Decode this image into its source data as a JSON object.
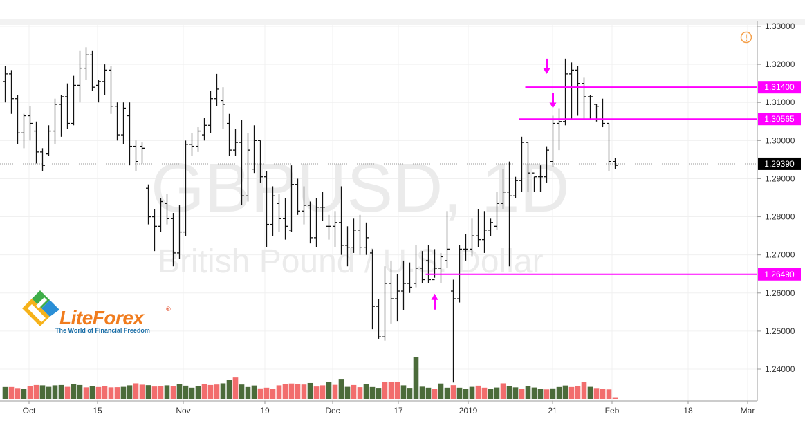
{
  "watermark": {
    "symbol": "GBPUSD, 1D",
    "description": "British Pound / U.S. Dollar"
  },
  "logo": {
    "name": "LiteForex",
    "registered": "®",
    "tagline": "The World of Financial Freedom"
  },
  "colors": {
    "up_volume": "#4b6b3a",
    "down_volume": "#f26d6d",
    "bars": "#111111",
    "marker": "#ff00ff",
    "last_price_bg": "#000000",
    "alert_icon": "#f5a04a"
  },
  "alert_icon": "alert-circle-icon",
  "chart_data": {
    "type": "ohlc",
    "title": "",
    "ylim": [
      1.232,
      1.332
    ],
    "y_ticks": [
      "1.24000",
      "1.25000",
      "1.26000",
      "1.27000",
      "1.28000",
      "1.29000",
      "1.30000",
      "1.31000",
      "1.32000",
      "1.33000"
    ],
    "x_ticks": [
      "Oct",
      "15",
      "Nov",
      "19",
      "Dec",
      "17",
      "2019",
      "21",
      "Feb",
      "18",
      "Mar"
    ],
    "last_price": "1.29390",
    "price_levels": [
      {
        "label": "1.31400",
        "value": 1.314,
        "from_bar": 84
      },
      {
        "label": "1.30565",
        "value": 1.30565,
        "from_bar": 83
      },
      {
        "label": "1.26490",
        "value": 1.2649,
        "from_bar": 68
      }
    ],
    "arrows": [
      {
        "bar": 87,
        "direction": "down",
        "value": 1.3175
      },
      {
        "bar": 88,
        "direction": "down",
        "value": 1.3085
      },
      {
        "bar": 69,
        "direction": "up",
        "value": 1.26
      }
    ],
    "bars": [
      [
        1.3155,
        1.3195,
        1.31,
        1.3175
      ],
      [
        1.3175,
        1.3185,
        1.307,
        1.311
      ],
      [
        1.311,
        1.312,
        1.299,
        1.302
      ],
      [
        1.302,
        1.307,
        1.298,
        1.3065
      ],
      [
        1.3065,
        1.309,
        1.3,
        1.3045
      ],
      [
        1.3025,
        1.305,
        1.294,
        1.297
      ],
      [
        1.297,
        1.298,
        1.292,
        1.2935
      ],
      [
        1.2965,
        1.304,
        1.296,
        1.3025
      ],
      [
        1.3025,
        1.311,
        1.299,
        1.3095
      ],
      [
        1.3095,
        1.312,
        1.301,
        1.3115
      ],
      [
        1.3115,
        1.315,
        1.303,
        1.3045
      ],
      [
        1.3045,
        1.317,
        1.304,
        1.3145
      ],
      [
        1.3145,
        1.3235,
        1.31,
        1.319
      ],
      [
        1.319,
        1.3245,
        1.316,
        1.3225
      ],
      [
        1.3225,
        1.3235,
        1.313,
        1.314
      ],
      [
        1.3145,
        1.316,
        1.31,
        1.3155
      ],
      [
        1.3155,
        1.32,
        1.312,
        1.3185
      ],
      [
        1.3185,
        1.3195,
        1.307,
        1.309
      ],
      [
        1.309,
        1.31,
        1.3,
        1.3015
      ],
      [
        1.3015,
        1.31,
        1.299,
        1.3085
      ],
      [
        1.3065,
        1.31,
        1.2935,
        1.2985
      ],
      [
        1.2985,
        1.3,
        1.292,
        1.2945
      ],
      [
        1.2985,
        1.2995,
        1.294,
        1.298
      ],
      [
        1.2875,
        1.2885,
        1.278,
        1.28
      ],
      [
        1.28,
        1.282,
        1.271,
        1.2775
      ],
      [
        1.2775,
        1.285,
        1.276,
        1.284
      ],
      [
        1.2835,
        1.286,
        1.278,
        1.2795
      ],
      [
        1.2795,
        1.281,
        1.267,
        1.2705
      ],
      [
        1.2705,
        1.283,
        1.269,
        1.276
      ],
      [
        1.276,
        1.3,
        1.275,
        1.299
      ],
      [
        1.299,
        1.302,
        1.296,
        1.2985
      ],
      [
        1.2985,
        1.3035,
        1.297,
        1.3025
      ],
      [
        1.3015,
        1.306,
        1.3,
        1.304
      ],
      [
        1.304,
        1.313,
        1.302,
        1.311
      ],
      [
        1.311,
        1.3175,
        1.309,
        1.3135
      ],
      [
        1.3105,
        1.314,
        1.303,
        1.3095
      ],
      [
        1.3045,
        1.307,
        1.296,
        1.2975
      ],
      [
        1.2975,
        1.303,
        1.296,
        1.2995
      ],
      [
        1.2995,
        1.3055,
        1.283,
        1.2855
      ],
      [
        1.2855,
        1.302,
        1.284,
        1.2975
      ],
      [
        1.2925,
        1.304,
        1.2915,
        1.3
      ],
      [
        1.3,
        1.3,
        1.289,
        1.2905
      ],
      [
        1.2905,
        1.292,
        1.272,
        1.278
      ],
      [
        1.278,
        1.288,
        1.275,
        1.2855
      ],
      [
        1.2835,
        1.286,
        1.276,
        1.2795
      ],
      [
        1.2795,
        1.285,
        1.274,
        1.2775
      ],
      [
        1.2765,
        1.2935,
        1.276,
        1.2885
      ],
      [
        1.2885,
        1.29,
        1.2805,
        1.2815
      ],
      [
        1.2815,
        1.288,
        1.278,
        1.283
      ],
      [
        1.283,
        1.284,
        1.273,
        1.2745
      ],
      [
        1.2745,
        1.285,
        1.272,
        1.2825
      ],
      [
        1.2825,
        1.2865,
        1.279,
        1.2825
      ],
      [
        1.2775,
        1.2805,
        1.274,
        1.2775
      ],
      [
        1.2775,
        1.2815,
        1.272,
        1.2785
      ],
      [
        1.2785,
        1.288,
        1.27,
        1.2725
      ],
      [
        1.2725,
        1.2775,
        1.267,
        1.272
      ],
      [
        1.272,
        1.2795,
        1.2705,
        1.2765
      ],
      [
        1.2765,
        1.2805,
        1.27,
        1.272
      ],
      [
        1.272,
        1.2785,
        1.27,
        1.2745
      ],
      [
        1.2705,
        1.2715,
        1.2505,
        1.2565
      ],
      [
        1.2565,
        1.2585,
        1.248,
        1.2485
      ],
      [
        1.2485,
        1.267,
        1.2475,
        1.2625
      ],
      [
        1.2625,
        1.2685,
        1.252,
        1.2585
      ],
      [
        1.2585,
        1.265,
        1.2525,
        1.2605
      ],
      [
        1.2605,
        1.2685,
        1.2555,
        1.2625
      ],
      [
        1.2625,
        1.268,
        1.26,
        1.2615
      ],
      [
        1.2625,
        1.2725,
        1.2615,
        1.2665
      ],
      [
        1.2665,
        1.271,
        1.2625,
        1.2635
      ],
      [
        1.2685,
        1.2725,
        1.2625,
        1.2635
      ],
      [
        1.2635,
        1.2715,
        1.264,
        1.2665
      ],
      [
        1.2665,
        1.2705,
        1.2625,
        1.2695
      ],
      [
        1.2685,
        1.2815,
        1.2665,
        1.2715
      ],
      [
        1.2605,
        1.2635,
        1.2365,
        1.2585
      ],
      [
        1.2585,
        1.2725,
        1.2575,
        1.2715
      ],
      [
        1.2715,
        1.2755,
        1.2685,
        1.2715
      ],
      [
        1.2715,
        1.2795,
        1.2695,
        1.275
      ],
      [
        1.275,
        1.282,
        1.272,
        1.274
      ],
      [
        1.274,
        1.2815,
        1.2705,
        1.2765
      ],
      [
        1.2765,
        1.2795,
        1.275,
        1.2785
      ],
      [
        1.2775,
        1.2865,
        1.2765,
        1.2835
      ],
      [
        1.2835,
        1.2925,
        1.282,
        1.2865
      ],
      [
        1.2865,
        1.2945,
        1.267,
        1.2855
      ],
      [
        1.2855,
        1.2905,
        1.285,
        1.2895
      ],
      [
        1.2895,
        1.301,
        1.2865,
        1.2995
      ],
      [
        1.2995,
        1.2995,
        1.2865,
        1.2915
      ],
      [
        1.2915,
        1.2905,
        1.2865,
        1.2905
      ],
      [
        1.2905,
        1.2935,
        1.2865,
        1.2905
      ],
      [
        1.2905,
        1.2985,
        1.289,
        1.2975
      ],
      [
        1.2945,
        1.3065,
        1.293,
        1.3045
      ],
      [
        1.3045,
        1.3085,
        1.2975,
        1.305
      ],
      [
        1.305,
        1.3215,
        1.304,
        1.3175
      ],
      [
        1.3175,
        1.3205,
        1.3055,
        1.3185
      ],
      [
        1.3185,
        1.3195,
        1.3065,
        1.315
      ],
      [
        1.315,
        1.3165,
        1.3055,
        1.3115
      ],
      [
        1.3115,
        1.312,
        1.3055,
        1.3115
      ],
      [
        1.3095,
        1.3095,
        1.305,
        1.309
      ],
      [
        1.3055,
        1.311,
        1.3035,
        1.3045
      ],
      [
        1.3045,
        1.3045,
        1.292,
        1.2945
      ],
      [
        1.2945,
        1.2955,
        1.2925,
        1.2935
      ]
    ],
    "volumes": [
      [
        70,
        1
      ],
      [
        70,
        0
      ],
      [
        64,
        0
      ],
      [
        58,
        1
      ],
      [
        75,
        0
      ],
      [
        82,
        0
      ],
      [
        80,
        1
      ],
      [
        71,
        1
      ],
      [
        80,
        1
      ],
      [
        82,
        1
      ],
      [
        71,
        0
      ],
      [
        88,
        1
      ],
      [
        82,
        1
      ],
      [
        68,
        0
      ],
      [
        74,
        1
      ],
      [
        70,
        0
      ],
      [
        75,
        0
      ],
      [
        68,
        0
      ],
      [
        69,
        0
      ],
      [
        71,
        1
      ],
      [
        80,
        1
      ],
      [
        92,
        0
      ],
      [
        84,
        0
      ],
      [
        81,
        1
      ],
      [
        73,
        0
      ],
      [
        75,
        0
      ],
      [
        80,
        1
      ],
      [
        76,
        0
      ],
      [
        89,
        1
      ],
      [
        78,
        1
      ],
      [
        66,
        1
      ],
      [
        76,
        1
      ],
      [
        86,
        0
      ],
      [
        82,
        0
      ],
      [
        85,
        0
      ],
      [
        92,
        1
      ],
      [
        112,
        1
      ],
      [
        126,
        0
      ],
      [
        85,
        1
      ],
      [
        70,
        1
      ],
      [
        79,
        1
      ],
      [
        62,
        0
      ],
      [
        66,
        0
      ],
      [
        61,
        0
      ],
      [
        80,
        0
      ],
      [
        89,
        0
      ],
      [
        91,
        0
      ],
      [
        86,
        0
      ],
      [
        85,
        0
      ],
      [
        94,
        1
      ],
      [
        73,
        0
      ],
      [
        80,
        0
      ],
      [
        98,
        1
      ],
      [
        83,
        0
      ],
      [
        118,
        1
      ],
      [
        71,
        1
      ],
      [
        82,
        0
      ],
      [
        69,
        0
      ],
      [
        89,
        1
      ],
      [
        70,
        1
      ],
      [
        65,
        1
      ],
      [
        100,
        0
      ],
      [
        101,
        0
      ],
      [
        98,
        0
      ],
      [
        80,
        1
      ],
      [
        65,
        1
      ],
      [
        247,
        1
      ],
      [
        72,
        1
      ],
      [
        66,
        1
      ],
      [
        60,
        0
      ],
      [
        91,
        1
      ],
      [
        66,
        1
      ],
      [
        81,
        0
      ],
      [
        66,
        1
      ],
      [
        60,
        1
      ],
      [
        71,
        1
      ],
      [
        78,
        0
      ],
      [
        66,
        0
      ],
      [
        58,
        1
      ],
      [
        67,
        1
      ],
      [
        92,
        0
      ],
      [
        77,
        1
      ],
      [
        68,
        1
      ],
      [
        60,
        0
      ],
      [
        74,
        1
      ],
      [
        67,
        1
      ],
      [
        60,
        1
      ],
      [
        56,
        0
      ],
      [
        62,
        1
      ],
      [
        70,
        1
      ],
      [
        79,
        1
      ],
      [
        70,
        0
      ],
      [
        76,
        0
      ],
      [
        98,
        0
      ],
      [
        71,
        1
      ],
      [
        64,
        0
      ],
      [
        60,
        0
      ],
      [
        56,
        0
      ],
      [
        10,
        0
      ]
    ]
  }
}
